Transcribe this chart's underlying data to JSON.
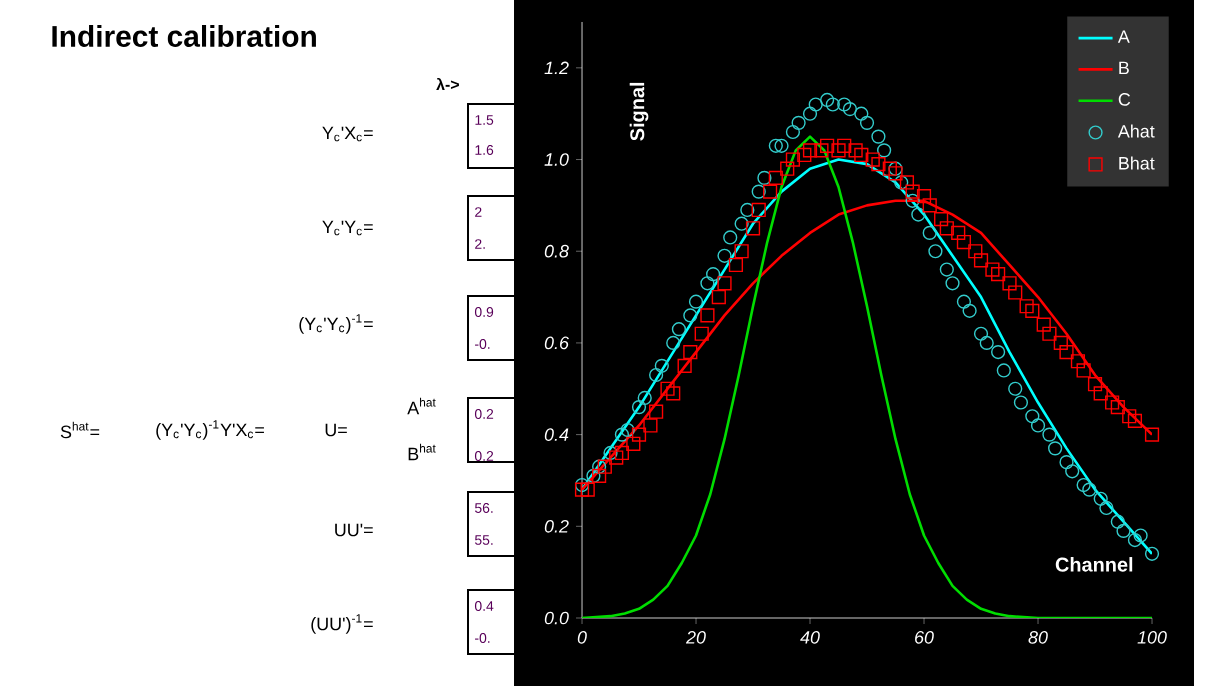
{
  "chart_data": {
    "type": "line",
    "xlabel": "Channel",
    "ylabel": "Signal",
    "xlim": [
      0,
      100
    ],
    "ylim": [
      0,
      1.3
    ],
    "xticks": [
      0,
      20,
      40,
      60,
      80,
      100
    ],
    "yticks": [
      {
        "value": 0,
        "label": "0.0"
      },
      {
        "value": 0.2,
        "label": "0.2"
      },
      {
        "value": 0.4,
        "label": "0.4"
      },
      {
        "value": 0.6,
        "label": "0.6"
      },
      {
        "value": 0.8,
        "label": "0.8"
      },
      {
        "value": 1.0,
        "label": "1.0"
      },
      {
        "value": 1.2,
        "label": "1.2"
      }
    ],
    "legend": "top right",
    "series": [
      {
        "name": "A",
        "color": "#00ffff",
        "marker": "none",
        "x": [
          0,
          5,
          10,
          15,
          20,
          25,
          30,
          35,
          40,
          45,
          50,
          55,
          60,
          65,
          70,
          75,
          80,
          85,
          90,
          95,
          100
        ],
        "values": [
          0.28,
          0.37,
          0.46,
          0.56,
          0.66,
          0.76,
          0.86,
          0.93,
          0.98,
          1.0,
          0.99,
          0.95,
          0.88,
          0.79,
          0.7,
          0.58,
          0.47,
          0.37,
          0.28,
          0.21,
          0.14
        ]
      },
      {
        "name": "B",
        "color": "#ff0000",
        "marker": "none",
        "x": [
          0,
          5,
          10,
          15,
          20,
          25,
          30,
          35,
          40,
          45,
          50,
          55,
          60,
          65,
          70,
          75,
          80,
          85,
          90,
          95,
          100
        ],
        "values": [
          0.28,
          0.35,
          0.42,
          0.5,
          0.58,
          0.66,
          0.73,
          0.79,
          0.84,
          0.88,
          0.9,
          0.91,
          0.91,
          0.88,
          0.84,
          0.77,
          0.7,
          0.62,
          0.53,
          0.46,
          0.4
        ]
      },
      {
        "name": "C",
        "color": "#00dd00",
        "marker": "none",
        "x": [
          0,
          5,
          7.5,
          10,
          12.5,
          15,
          17.5,
          20,
          22.5,
          25,
          27.5,
          30,
          32.5,
          35,
          37.5,
          40,
          42.5,
          45,
          47.5,
          50,
          52.5,
          55,
          57.5,
          60,
          62.5,
          65,
          67.5,
          70,
          72.5,
          75,
          80,
          90,
          100
        ],
        "values": [
          0,
          0.004,
          0.01,
          0.02,
          0.04,
          0.07,
          0.12,
          0.18,
          0.27,
          0.39,
          0.53,
          0.68,
          0.82,
          0.94,
          1.02,
          1.05,
          1.02,
          0.94,
          0.82,
          0.68,
          0.53,
          0.39,
          0.27,
          0.18,
          0.12,
          0.07,
          0.04,
          0.02,
          0.01,
          0.004,
          0,
          0,
          0
        ]
      },
      {
        "name": "Ahat",
        "type": "scatter",
        "color": "#33cccc",
        "marker": "circle",
        "x": [
          0,
          2,
          3,
          5,
          7,
          8,
          10,
          11,
          13,
          14,
          16,
          17,
          19,
          20,
          22,
          23,
          25,
          26,
          28,
          29,
          31,
          32,
          34,
          35,
          37,
          38,
          40,
          41,
          43,
          44,
          46,
          47,
          49,
          50,
          52,
          53,
          55,
          56,
          58,
          59,
          61,
          62,
          64,
          65,
          67,
          68,
          70,
          71,
          73,
          74,
          76,
          77,
          79,
          80,
          82,
          83,
          85,
          86,
          88,
          89,
          91,
          92,
          94,
          95,
          97,
          98,
          100
        ],
        "values": [
          0.29,
          0.31,
          0.33,
          0.36,
          0.4,
          0.41,
          0.46,
          0.48,
          0.53,
          0.55,
          0.6,
          0.63,
          0.66,
          0.69,
          0.73,
          0.75,
          0.79,
          0.83,
          0.86,
          0.89,
          0.93,
          0.96,
          1.03,
          1.03,
          1.06,
          1.08,
          1.1,
          1.12,
          1.13,
          1.12,
          1.12,
          1.11,
          1.1,
          1.08,
          1.05,
          1.02,
          0.98,
          0.95,
          0.91,
          0.88,
          0.84,
          0.8,
          0.76,
          0.73,
          0.69,
          0.67,
          0.62,
          0.6,
          0.58,
          0.54,
          0.5,
          0.47,
          0.44,
          0.42,
          0.4,
          0.37,
          0.34,
          0.32,
          0.29,
          0.28,
          0.26,
          0.24,
          0.21,
          0.19,
          0.17,
          0.18,
          0.14
        ]
      },
      {
        "name": "Bhat",
        "type": "scatter",
        "color": "#ff0000",
        "marker": "square",
        "x": [
          0,
          1,
          3,
          4,
          6,
          7,
          9,
          10,
          12,
          13,
          15,
          16,
          18,
          19,
          21,
          22,
          24,
          25,
          27,
          28,
          30,
          31,
          33,
          34,
          36,
          37,
          39,
          40,
          42,
          43,
          45,
          46,
          48,
          49,
          51,
          52,
          54,
          55,
          57,
          58,
          60,
          61,
          63,
          64,
          66,
          67,
          69,
          70,
          72,
          73,
          75,
          76,
          78,
          79,
          81,
          82,
          84,
          85,
          87,
          88,
          90,
          91,
          93,
          94,
          96,
          97,
          100
        ],
        "values": [
          0.28,
          0.28,
          0.31,
          0.33,
          0.35,
          0.36,
          0.38,
          0.4,
          0.42,
          0.45,
          0.5,
          0.49,
          0.55,
          0.58,
          0.62,
          0.66,
          0.7,
          0.73,
          0.77,
          0.8,
          0.85,
          0.89,
          0.93,
          0.96,
          0.98,
          1.0,
          1.01,
          1.02,
          1.02,
          1.03,
          1.02,
          1.03,
          1.02,
          1.01,
          1.0,
          0.99,
          0.98,
          0.97,
          0.95,
          0.93,
          0.92,
          0.9,
          0.87,
          0.85,
          0.84,
          0.82,
          0.8,
          0.78,
          0.76,
          0.75,
          0.73,
          0.71,
          0.68,
          0.67,
          0.64,
          0.62,
          0.6,
          0.58,
          0.56,
          0.54,
          0.51,
          0.49,
          0.47,
          0.46,
          0.44,
          0.43,
          0.4
        ]
      }
    ],
    "annotations": [
      "Indirect calibration",
      "λ->",
      "Y$_{c}$'X$_{c}$=",
      "Y$_{c}$'Y$_{c}$=",
      "(Y$_{c}$'Y$_{c}$)$^{-1}$=",
      "S$^{hat}$=",
      "(Y$_{c}$'Y$_{c}$)$^{-1}$Y'X$_{c}$=",
      "U=",
      "A$^{hat}$",
      "B$^{hat}$",
      "UU'=",
      "(UU')$^{-1}$=",
      "1.5",
      "1.6",
      "2",
      "2.",
      "0.9",
      "-0.",
      "0.2",
      "0.2",
      "56.",
      "55.",
      "0.4",
      "-0."
    ]
  }
}
